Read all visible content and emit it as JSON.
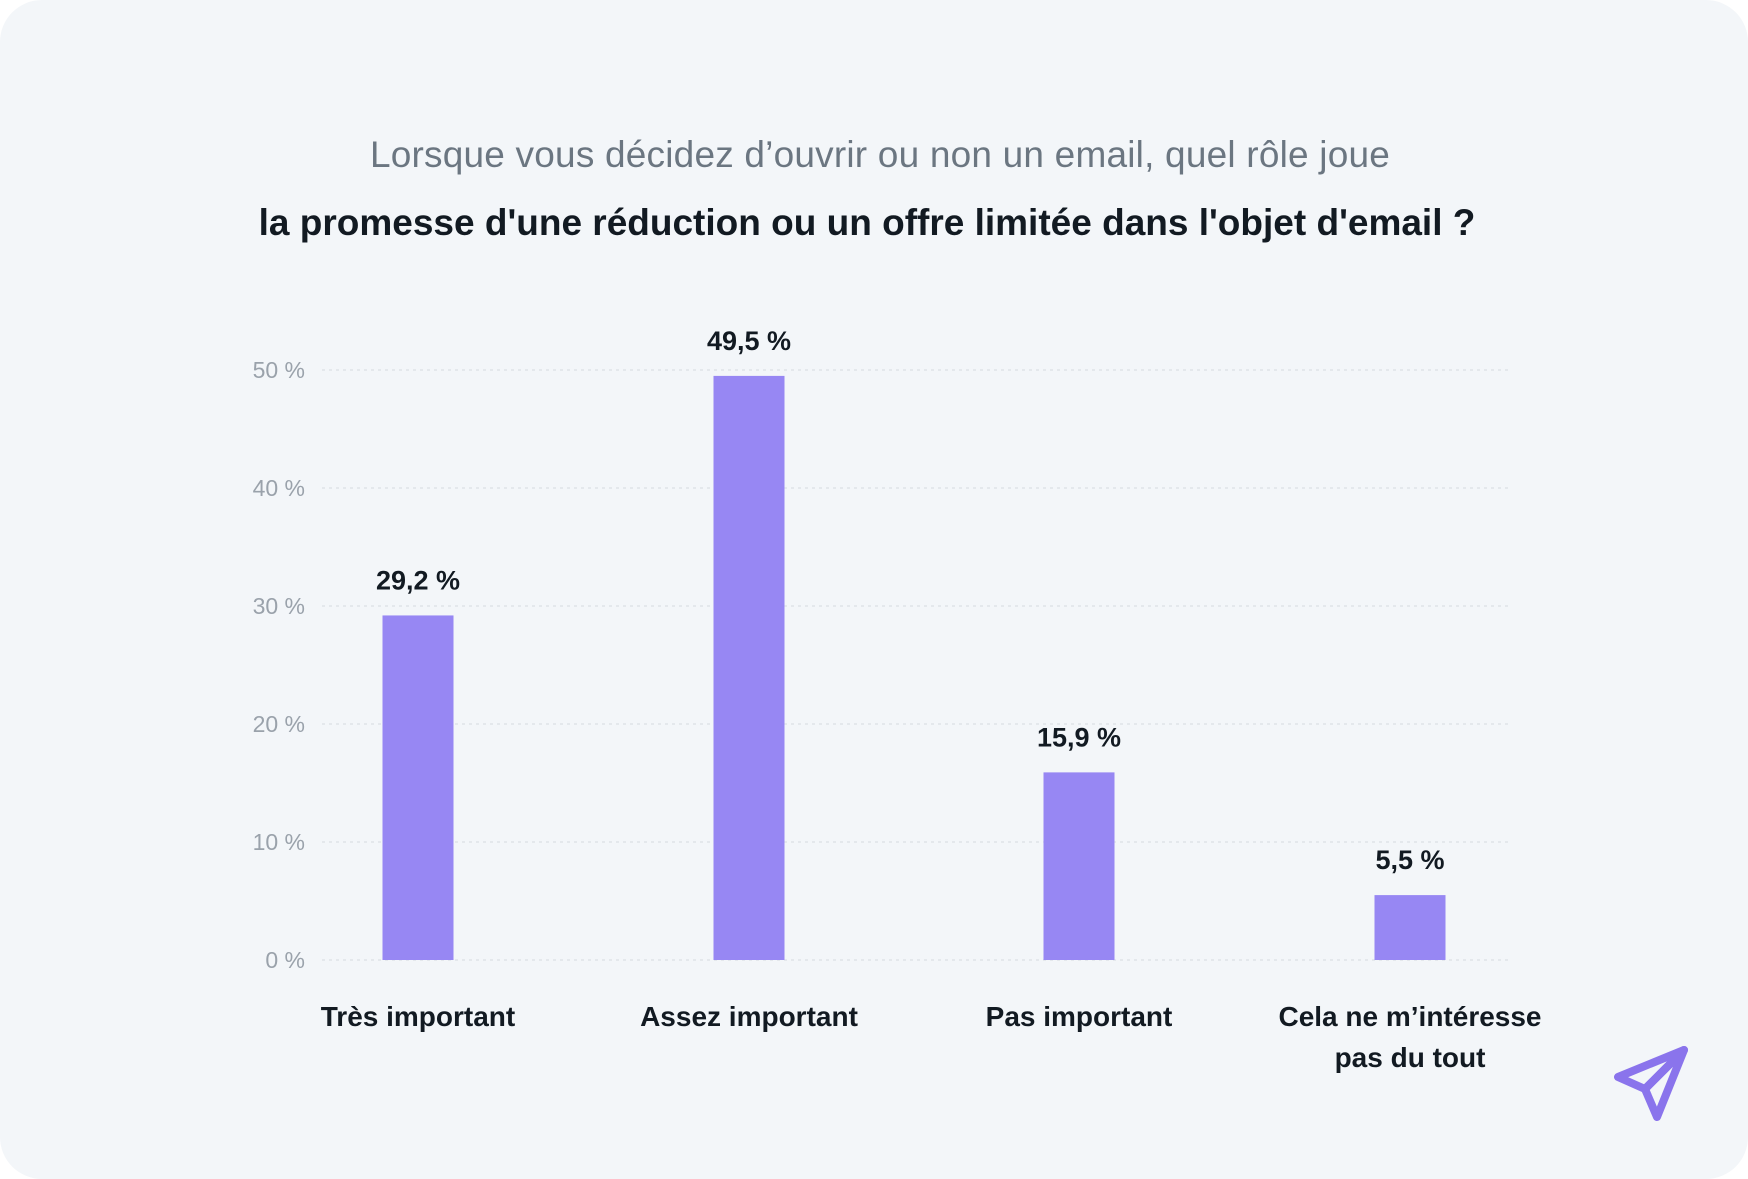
{
  "header": {
    "subtitle": "Lorsque vous décidez d’ouvrir ou non un email, quel rôle joue",
    "title": "la promesse d'une réduction ou un offre limitée dans l'objet d'email ?"
  },
  "chart_data": {
    "type": "bar",
    "title": "la promesse d'une réduction ou un offre limitée dans l'objet d'email ?",
    "subtitle": "Lorsque vous décidez d’ouvrir ou non un email, quel rôle joue",
    "categories": [
      [
        "Très important"
      ],
      [
        "Assez important"
      ],
      [
        "Pas important"
      ],
      [
        "Cela ne m’intéresse",
        "pas du tout"
      ]
    ],
    "values": [
      29.2,
      49.5,
      15.9,
      5.5
    ],
    "value_labels": [
      "29,2 %",
      "49,5 %",
      "15,9 %",
      "5,5 %"
    ],
    "ylim": [
      0,
      50
    ],
    "yticks": [
      0,
      10,
      20,
      30,
      40,
      50
    ],
    "ytick_labels": [
      "0 %",
      "10 %",
      "20 %",
      "30 %",
      "40 %",
      "50 %"
    ],
    "grid": true,
    "xlabel": "",
    "ylabel": "",
    "colors": {
      "bar": "#9787f3",
      "grid": "#dfe3e8",
      "tick_text": "#9aa2ab",
      "label_text": "#121a22",
      "card_background": "#f3f6f9"
    }
  },
  "logo": {
    "icon": "paper-plane-icon",
    "color": "#8a74ec"
  }
}
